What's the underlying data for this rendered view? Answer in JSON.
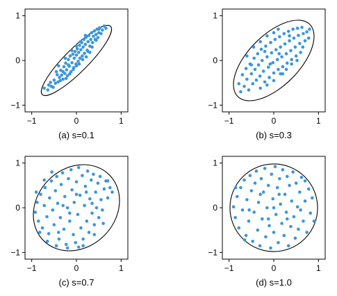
{
  "chart_data": [
    {
      "type": "scatter",
      "caption": "(a)  s=0.1",
      "xlim": [
        -1.15,
        1.15
      ],
      "ylim": [
        -1.15,
        1.15
      ],
      "xticks": [
        -1,
        0,
        1
      ],
      "yticks": [
        -1,
        0,
        1
      ],
      "xtick_labels": [
        "−1",
        "0",
        "1"
      ],
      "ytick_labels": [
        "−1",
        "0",
        "1"
      ],
      "grid": false,
      "point_color": "#3a96dd",
      "boundary": {
        "shape": "ellipse",
        "cx": 0.0,
        "cy": 0.0,
        "angle_deg": 45,
        "semi_major": 1.08,
        "semi_minor": 0.26
      },
      "points": [
        [
          -0.72,
          -0.62
        ],
        [
          -0.64,
          -0.66
        ],
        [
          -0.58,
          -0.49
        ],
        [
          -0.56,
          -0.58
        ],
        [
          -0.5,
          -0.44
        ],
        [
          -0.47,
          -0.51
        ],
        [
          -0.43,
          -0.32
        ],
        [
          -0.41,
          -0.48
        ],
        [
          -0.38,
          -0.38
        ],
        [
          -0.35,
          -0.22
        ],
        [
          -0.33,
          -0.33
        ],
        [
          -0.3,
          -0.42
        ],
        [
          -0.28,
          -0.14
        ],
        [
          -0.26,
          -0.29
        ],
        [
          -0.24,
          -0.06
        ],
        [
          -0.22,
          -0.21
        ],
        [
          -0.2,
          -0.34
        ],
        [
          -0.18,
          0.02
        ],
        [
          -0.16,
          -0.13
        ],
        [
          -0.14,
          0.1
        ],
        [
          -0.12,
          -0.25
        ],
        [
          -0.1,
          -0.05
        ],
        [
          -0.08,
          0.14
        ],
        [
          -0.06,
          -0.16
        ],
        [
          -0.05,
          0.05
        ],
        [
          -0.03,
          0.2
        ],
        [
          -0.01,
          -0.08
        ],
        [
          0.0,
          0.12
        ],
        [
          0.02,
          0.26
        ],
        [
          0.04,
          -0.02
        ],
        [
          0.05,
          0.18
        ],
        [
          0.07,
          0.34
        ],
        [
          0.08,
          0.05
        ],
        [
          0.1,
          0.24
        ],
        [
          0.12,
          0.4
        ],
        [
          0.13,
          0.1
        ],
        [
          0.15,
          0.3
        ],
        [
          0.17,
          0.47
        ],
        [
          0.18,
          0.16
        ],
        [
          0.2,
          0.36
        ],
        [
          0.22,
          0.52
        ],
        [
          0.24,
          0.23
        ],
        [
          0.26,
          0.42
        ],
        [
          0.28,
          0.56
        ],
        [
          0.3,
          0.32
        ],
        [
          0.32,
          0.47
        ],
        [
          0.34,
          0.62
        ],
        [
          0.36,
          0.4
        ],
        [
          0.38,
          0.54
        ],
        [
          0.4,
          0.66
        ],
        [
          0.42,
          0.47
        ],
        [
          0.44,
          0.58
        ],
        [
          0.46,
          0.7
        ],
        [
          0.48,
          0.51
        ],
        [
          0.5,
          0.62
        ],
        [
          0.52,
          0.73
        ],
        [
          0.55,
          0.6
        ],
        [
          0.58,
          0.68
        ],
        [
          0.62,
          0.77
        ],
        [
          0.66,
          0.72
        ],
        [
          -0.62,
          -0.55
        ],
        [
          -0.52,
          -0.6
        ],
        [
          -0.36,
          -0.45
        ],
        [
          -0.3,
          -0.25
        ],
        [
          -0.23,
          -0.4
        ],
        [
          -0.15,
          -0.3
        ],
        [
          -0.07,
          -0.2
        ],
        [
          0.0,
          -0.12
        ],
        [
          0.06,
          -0.08
        ],
        [
          0.14,
          0.02
        ],
        [
          0.22,
          0.08
        ],
        [
          0.3,
          0.18
        ],
        [
          -0.4,
          -0.12
        ],
        [
          -0.25,
          0.05
        ],
        [
          -0.1,
          0.22
        ],
        [
          0.0,
          0.32
        ],
        [
          0.09,
          0.42
        ],
        [
          0.2,
          0.56
        ],
        [
          0.35,
          0.3
        ],
        [
          0.44,
          0.45
        ],
        [
          -0.45,
          -0.25
        ],
        [
          -0.18,
          -0.1
        ],
        [
          0.26,
          0.2
        ],
        [
          0.5,
          0.7
        ]
      ]
    },
    {
      "type": "scatter",
      "caption": "(b)  s=0.3",
      "xlim": [
        -1.15,
        1.15
      ],
      "ylim": [
        -1.15,
        1.15
      ],
      "xticks": [
        -1,
        0,
        1
      ],
      "yticks": [
        -1,
        0,
        1
      ],
      "xtick_labels": [
        "−1",
        "0",
        "1"
      ],
      "ytick_labels": [
        "−1",
        "0",
        "1"
      ],
      "grid": false,
      "point_color": "#3a96dd",
      "boundary": {
        "shape": "ellipse",
        "cx": 0.0,
        "cy": 0.0,
        "angle_deg": 45,
        "semi_major": 1.14,
        "semi_minor": 0.57
      },
      "points": [
        [
          -0.78,
          -0.52
        ],
        [
          -0.74,
          -0.7
        ],
        [
          -0.7,
          -0.32
        ],
        [
          -0.66,
          -0.58
        ],
        [
          -0.62,
          -0.18
        ],
        [
          -0.6,
          -0.42
        ],
        [
          -0.56,
          -0.66
        ],
        [
          -0.53,
          -0.08
        ],
        [
          -0.5,
          -0.3
        ],
        [
          -0.47,
          -0.52
        ],
        [
          -0.44,
          0.05
        ],
        [
          -0.42,
          -0.2
        ],
        [
          -0.39,
          -0.44
        ],
        [
          -0.36,
          0.15
        ],
        [
          -0.34,
          -0.1
        ],
        [
          -0.31,
          -0.35
        ],
        [
          -0.28,
          0.25
        ],
        [
          -0.26,
          0.0
        ],
        [
          -0.23,
          -0.24
        ],
        [
          -0.2,
          -0.48
        ],
        [
          -0.18,
          0.32
        ],
        [
          -0.15,
          0.08
        ],
        [
          -0.12,
          -0.15
        ],
        [
          -0.1,
          -0.38
        ],
        [
          -0.07,
          0.4
        ],
        [
          -0.05,
          0.17
        ],
        [
          -0.02,
          -0.05
        ],
        [
          0.0,
          -0.28
        ],
        [
          0.03,
          0.47
        ],
        [
          0.05,
          0.24
        ],
        [
          0.08,
          0.02
        ],
        [
          0.1,
          -0.2
        ],
        [
          0.13,
          0.53
        ],
        [
          0.15,
          0.3
        ],
        [
          0.18,
          0.08
        ],
        [
          0.2,
          -0.14
        ],
        [
          0.23,
          0.6
        ],
        [
          0.25,
          0.37
        ],
        [
          0.28,
          0.15
        ],
        [
          0.3,
          -0.06
        ],
        [
          0.33,
          0.65
        ],
        [
          0.35,
          0.44
        ],
        [
          0.38,
          0.22
        ],
        [
          0.4,
          0.02
        ],
        [
          0.43,
          0.7
        ],
        [
          0.45,
          0.5
        ],
        [
          0.48,
          0.3
        ],
        [
          0.5,
          0.1
        ],
        [
          0.53,
          0.72
        ],
        [
          0.55,
          0.56
        ],
        [
          0.58,
          0.38
        ],
        [
          0.6,
          0.18
        ],
        [
          0.63,
          0.74
        ],
        [
          0.66,
          0.6
        ],
        [
          0.7,
          0.44
        ],
        [
          0.74,
          0.64
        ],
        [
          0.78,
          0.5
        ],
        [
          0.8,
          0.7
        ],
        [
          -0.3,
          -0.62
        ],
        [
          -0.15,
          -0.55
        ],
        [
          0.0,
          -0.45
        ],
        [
          0.15,
          -0.3
        ],
        [
          0.28,
          -0.2
        ],
        [
          0.4,
          -0.08
        ],
        [
          0.52,
          0.0
        ],
        [
          -0.45,
          0.3
        ],
        [
          -0.3,
          0.42
        ],
        [
          -0.15,
          0.55
        ],
        [
          0.0,
          0.62
        ],
        [
          0.1,
          0.7
        ],
        [
          -0.6,
          0.1
        ],
        [
          0.65,
          0.3
        ],
        [
          -0.2,
          0.2
        ],
        [
          0.2,
          -0.3
        ],
        [
          0.35,
          0.55
        ],
        [
          -0.5,
          -0.1
        ],
        [
          0.12,
          0.15
        ],
        [
          -0.08,
          -0.08
        ]
      ]
    },
    {
      "type": "scatter",
      "caption": "(c)  s=0.7",
      "xlim": [
        -1.15,
        1.15
      ],
      "ylim": [
        -1.15,
        1.15
      ],
      "xticks": [
        -1,
        0,
        1
      ],
      "yticks": [
        -1,
        0,
        1
      ],
      "xtick_labels": [
        "−1",
        "0",
        "1"
      ],
      "ytick_labels": [
        "−1",
        "0",
        "1"
      ],
      "grid": false,
      "point_color": "#3a96dd",
      "boundary": {
        "shape": "ellipse",
        "cx": 0.0,
        "cy": 0.0,
        "angle_deg": 45,
        "semi_major": 1.04,
        "semi_minor": 0.88
      },
      "points": [
        [
          -0.92,
          -0.1
        ],
        [
          -0.88,
          0.12
        ],
        [
          -0.85,
          -0.3
        ],
        [
          -0.8,
          0.3
        ],
        [
          -0.76,
          -0.45
        ],
        [
          -0.72,
          0.05
        ],
        [
          -0.7,
          0.45
        ],
        [
          -0.66,
          -0.2
        ],
        [
          -0.62,
          -0.58
        ],
        [
          -0.6,
          0.22
        ],
        [
          -0.56,
          0.6
        ],
        [
          -0.53,
          -0.05
        ],
        [
          -0.5,
          -0.38
        ],
        [
          -0.47,
          0.38
        ],
        [
          -0.44,
          0.7
        ],
        [
          -0.42,
          0.1
        ],
        [
          -0.39,
          -0.7
        ],
        [
          -0.36,
          -0.22
        ],
        [
          -0.34,
          0.52
        ],
        [
          -0.31,
          0.78
        ],
        [
          -0.28,
          -0.48
        ],
        [
          -0.26,
          0.25
        ],
        [
          -0.23,
          -0.82
        ],
        [
          -0.2,
          0.0
        ],
        [
          -0.18,
          0.65
        ],
        [
          -0.15,
          -0.3
        ],
        [
          -0.12,
          0.85
        ],
        [
          -0.1,
          0.4
        ],
        [
          -0.07,
          -0.6
        ],
        [
          -0.05,
          0.12
        ],
        [
          -0.02,
          -0.78
        ],
        [
          0.0,
          0.58
        ],
        [
          0.03,
          -0.15
        ],
        [
          0.05,
          0.9
        ],
        [
          0.08,
          0.28
        ],
        [
          0.1,
          -0.45
        ],
        [
          0.13,
          0.72
        ],
        [
          0.15,
          -0.7
        ],
        [
          0.18,
          0.05
        ],
        [
          0.2,
          0.48
        ],
        [
          0.23,
          -0.3
        ],
        [
          0.25,
          0.82
        ],
        [
          0.28,
          -0.55
        ],
        [
          0.3,
          0.2
        ],
        [
          0.33,
          0.62
        ],
        [
          0.35,
          -0.12
        ],
        [
          0.38,
          0.75
        ],
        [
          0.4,
          -0.38
        ],
        [
          0.43,
          0.35
        ],
        [
          0.45,
          0.0
        ],
        [
          0.48,
          0.55
        ],
        [
          0.5,
          -0.22
        ],
        [
          0.53,
          0.7
        ],
        [
          0.55,
          0.18
        ],
        [
          0.58,
          -0.05
        ],
        [
          0.62,
          0.42
        ],
        [
          0.66,
          0.6
        ],
        [
          0.7,
          0.22
        ],
        [
          0.75,
          0.45
        ],
        [
          0.8,
          0.35
        ],
        [
          -0.82,
          -0.55
        ],
        [
          -0.65,
          -0.75
        ],
        [
          -0.45,
          -0.85
        ],
        [
          -0.2,
          -0.9
        ],
        [
          0.05,
          -0.88
        ],
        [
          -0.72,
          0.62
        ],
        [
          -0.55,
          0.8
        ],
        [
          0.6,
          -0.35
        ],
        [
          0.4,
          -0.6
        ],
        [
          0.15,
          -0.85
        ],
        [
          -0.3,
          0.05
        ],
        [
          0.0,
          0.3
        ],
        [
          0.22,
          0.35
        ],
        [
          -0.15,
          -0.12
        ],
        [
          0.35,
          0.1
        ],
        [
          -0.4,
          -0.55
        ],
        [
          0.7,
          0.6
        ],
        [
          -0.9,
          0.35
        ]
      ]
    },
    {
      "type": "scatter",
      "caption": "(d)  s=1.0",
      "xlim": [
        -1.15,
        1.15
      ],
      "ylim": [
        -1.15,
        1.15
      ],
      "xticks": [
        -1,
        0,
        1
      ],
      "yticks": [
        -1,
        0,
        1
      ],
      "xtick_labels": [
        "−1",
        "0",
        "1"
      ],
      "ytick_labels": [
        "−1",
        "0",
        "1"
      ],
      "grid": false,
      "point_color": "#3a96dd",
      "boundary": {
        "shape": "ellipse",
        "cx": 0.0,
        "cy": 0.0,
        "angle_deg": 0,
        "semi_major": 0.98,
        "semi_minor": 0.98
      },
      "points": [
        [
          -0.9,
          0.02
        ],
        [
          -0.86,
          -0.22
        ],
        [
          -0.82,
          0.25
        ],
        [
          -0.78,
          -0.45
        ],
        [
          -0.74,
          0.45
        ],
        [
          -0.7,
          -0.05
        ],
        [
          -0.66,
          0.62
        ],
        [
          -0.62,
          -0.62
        ],
        [
          -0.6,
          0.18
        ],
        [
          -0.56,
          -0.3
        ],
        [
          -0.53,
          0.72
        ],
        [
          -0.5,
          0.38
        ],
        [
          -0.47,
          -0.75
        ],
        [
          -0.44,
          -0.1
        ],
        [
          -0.42,
          0.55
        ],
        [
          -0.39,
          0.82
        ],
        [
          -0.36,
          -0.5
        ],
        [
          -0.34,
          0.12
        ],
        [
          -0.31,
          -0.85
        ],
        [
          -0.28,
          0.65
        ],
        [
          -0.26,
          -0.25
        ],
        [
          -0.23,
          0.35
        ],
        [
          -0.2,
          0.88
        ],
        [
          -0.18,
          -0.65
        ],
        [
          -0.15,
          0.0
        ],
        [
          -0.12,
          0.5
        ],
        [
          -0.1,
          -0.4
        ],
        [
          -0.07,
          -0.9
        ],
        [
          -0.05,
          0.75
        ],
        [
          -0.02,
          0.2
        ],
        [
          0.0,
          -0.55
        ],
        [
          0.03,
          0.92
        ],
        [
          0.05,
          -0.15
        ],
        [
          0.08,
          0.45
        ],
        [
          0.1,
          -0.78
        ],
        [
          0.13,
          0.65
        ],
        [
          0.15,
          0.08
        ],
        [
          0.18,
          -0.35
        ],
        [
          0.2,
          0.85
        ],
        [
          0.23,
          -0.62
        ],
        [
          0.25,
          0.3
        ],
        [
          0.28,
          -0.1
        ],
        [
          0.3,
          0.7
        ],
        [
          0.33,
          -0.85
        ],
        [
          0.35,
          0.5
        ],
        [
          0.38,
          -0.42
        ],
        [
          0.4,
          0.15
        ],
        [
          0.43,
          0.8
        ],
        [
          0.45,
          -0.2
        ],
        [
          0.48,
          -0.68
        ],
        [
          0.5,
          0.55
        ],
        [
          0.53,
          0.02
        ],
        [
          0.55,
          -0.48
        ],
        [
          0.58,
          0.35
        ],
        [
          0.62,
          0.68
        ],
        [
          0.66,
          -0.3
        ],
        [
          0.7,
          0.15
        ],
        [
          0.74,
          -0.55
        ],
        [
          0.78,
          0.42
        ],
        [
          0.82,
          -0.12
        ],
        [
          0.86,
          0.22
        ],
        [
          0.9,
          -0.3
        ],
        [
          -0.85,
          0.45
        ],
        [
          -0.65,
          -0.72
        ],
        [
          0.7,
          0.6
        ],
        [
          0.0,
          0.0
        ],
        [
          -0.3,
          0.3
        ],
        [
          0.3,
          -0.25
        ],
        [
          -0.55,
          -0.05
        ],
        [
          0.6,
          -0.05
        ],
        [
          0.12,
          0.3
        ],
        [
          -0.12,
          -0.25
        ]
      ]
    }
  ]
}
